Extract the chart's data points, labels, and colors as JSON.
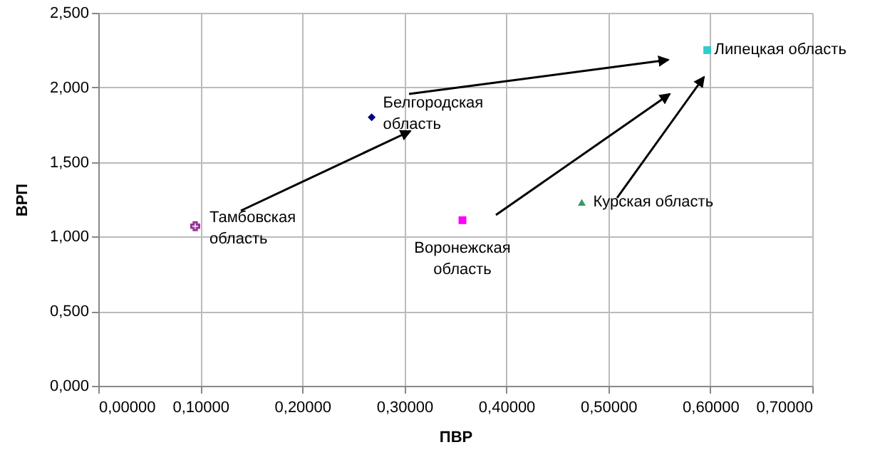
{
  "chart_data": {
    "type": "scatter",
    "xlabel": "ПВР",
    "ylabel": "ВРП",
    "xlim": [
      0,
      0.7
    ],
    "ylim": [
      0,
      2.5
    ],
    "xticks": [
      {
        "value": 0,
        "label": "0,00000"
      },
      {
        "value": 0.1,
        "label": "0,10000"
      },
      {
        "value": 0.2,
        "label": "0,20000"
      },
      {
        "value": 0.3,
        "label": "0,30000"
      },
      {
        "value": 0.4,
        "label": "0,40000"
      },
      {
        "value": 0.5,
        "label": "0,50000"
      },
      {
        "value": 0.6,
        "label": "0,60000"
      },
      {
        "value": 0.7,
        "label": "0,70000"
      }
    ],
    "yticks": [
      {
        "value": 0,
        "label": "0,000"
      },
      {
        "value": 0.5,
        "label": "0,500"
      },
      {
        "value": 1,
        "label": "1,000"
      },
      {
        "value": 1.5,
        "label": "1,500"
      },
      {
        "value": 2,
        "label": "2,000"
      },
      {
        "value": 2.5,
        "label": "2,500"
      }
    ],
    "grid": true,
    "series": [
      {
        "name": "Тамбовская область",
        "color": "#993399",
        "marker": "cross",
        "x": [
          0.095
        ],
        "values": [
          1.07
        ]
      },
      {
        "name": "Белгородская область",
        "color": "#000080",
        "marker": "diamond",
        "x": [
          0.268
        ],
        "values": [
          1.8
        ]
      },
      {
        "name": "Воронежская область",
        "color": "#ff00ff",
        "marker": "square",
        "x": [
          0.357
        ],
        "values": [
          1.11
        ]
      },
      {
        "name": "Курская область",
        "color": "#339966",
        "marker": "triangle",
        "x": [
          0.474
        ],
        "values": [
          1.23
        ]
      },
      {
        "name": "Липецкая область",
        "color": "#33cccc",
        "marker": "square",
        "x": [
          0.597
        ],
        "values": [
          2.25
        ]
      }
    ]
  }
}
